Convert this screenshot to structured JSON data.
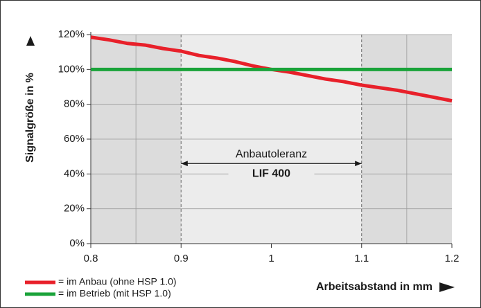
{
  "chart_data": {
    "type": "line",
    "ylabel": "Signalgröße in %",
    "xlabel": "Arbeitsabstand in mm",
    "x": [
      0.8,
      0.82,
      0.84,
      0.86,
      0.88,
      0.9,
      0.92,
      0.94,
      0.96,
      0.98,
      1.0,
      1.02,
      1.04,
      1.06,
      1.08,
      1.1,
      1.12,
      1.14,
      1.16,
      1.18,
      1.2
    ],
    "series": [
      {
        "name": "= im Anbau (ohne HSP 1.0)",
        "color": "#e8202a",
        "x": [
          0.8,
          0.82,
          0.84,
          0.86,
          0.88,
          0.9,
          0.92,
          0.94,
          0.96,
          0.98,
          1.0,
          1.02,
          1.04,
          1.06,
          1.08,
          1.1,
          1.12,
          1.14,
          1.16,
          1.18,
          1.2
        ],
        "values": [
          118.5,
          117,
          115,
          114,
          112,
          110.5,
          108,
          106.5,
          104.5,
          102,
          100,
          98.5,
          96.5,
          94.5,
          93,
          91,
          89.5,
          88,
          86,
          84,
          82
        ]
      },
      {
        "name": "= im Betrieb (mit HSP 1.0)",
        "color": "#1aa33a",
        "x": [
          0.8,
          1.2
        ],
        "values": [
          100,
          100
        ]
      }
    ],
    "xlim": [
      0.8,
      1.2
    ],
    "xticks": [
      0.8,
      0.9,
      1,
      1.1,
      1.2
    ],
    "ylim": [
      0,
      120
    ],
    "yticks": [
      {
        "value": 0,
        "label": "0%"
      },
      {
        "value": 20,
        "label": "20%"
      },
      {
        "value": 40,
        "label": "40%"
      },
      {
        "value": 60,
        "label": "60%"
      },
      {
        "value": 80,
        "label": "80%"
      },
      {
        "value": 100,
        "label": "100%"
      },
      {
        "value": 120,
        "label": "120%"
      }
    ],
    "grid": true,
    "xminor": [
      0.85,
      1.15
    ],
    "shaded": [
      [
        0.8,
        0.9
      ],
      [
        1.1,
        1.2
      ]
    ],
    "annotation": {
      "label": "Anbautoleranz",
      "sublabel": "LIF 400",
      "x": [
        0.9,
        1.1
      ],
      "y": 46
    },
    "legend": "bottom-left"
  }
}
